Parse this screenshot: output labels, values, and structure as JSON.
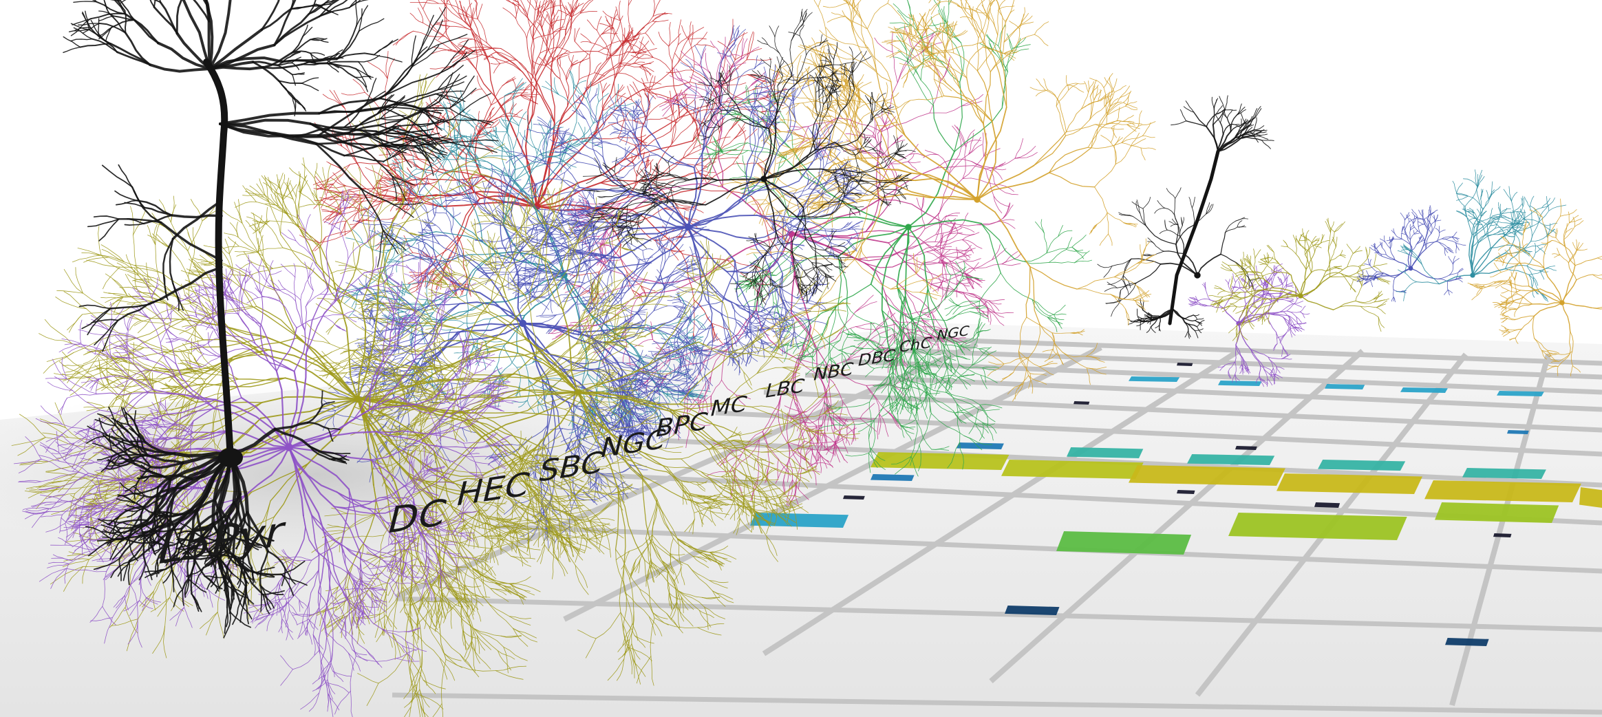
{
  "scene": {
    "name": "3D neuron morphology connectivity visualization",
    "labels": [
      "L5Pyr",
      "DC",
      "HEC",
      "SBC",
      "NGC",
      "BPC",
      "MC",
      "LBC",
      "NBC",
      "DBC",
      "ChC",
      "NGC"
    ],
    "floor_color": "#ededed",
    "grid_line_color": "#c4c4c4",
    "neuron_colors": {
      "pyramidal": "#141414",
      "olive": "#9f9a1c",
      "purple_violet": "#8e52c6",
      "blue_violet": "#4b52b6",
      "red": "#c62b2f",
      "teal": "#2f8ea1",
      "magenta": "#c0398c",
      "green": "#2fa64a",
      "gold": "#d3a12b"
    },
    "cell_colors": {
      "yellow_green": "#b7c21d",
      "olive_yellow": "#c8b81a",
      "lime": "#9dc424",
      "green": "#5cbd45",
      "teal": "#36b3a4",
      "cyan": "#2ba3c8",
      "blue": "#1f78b4",
      "navy": "#103d6a",
      "near_black": "#1a1a2e"
    }
  }
}
